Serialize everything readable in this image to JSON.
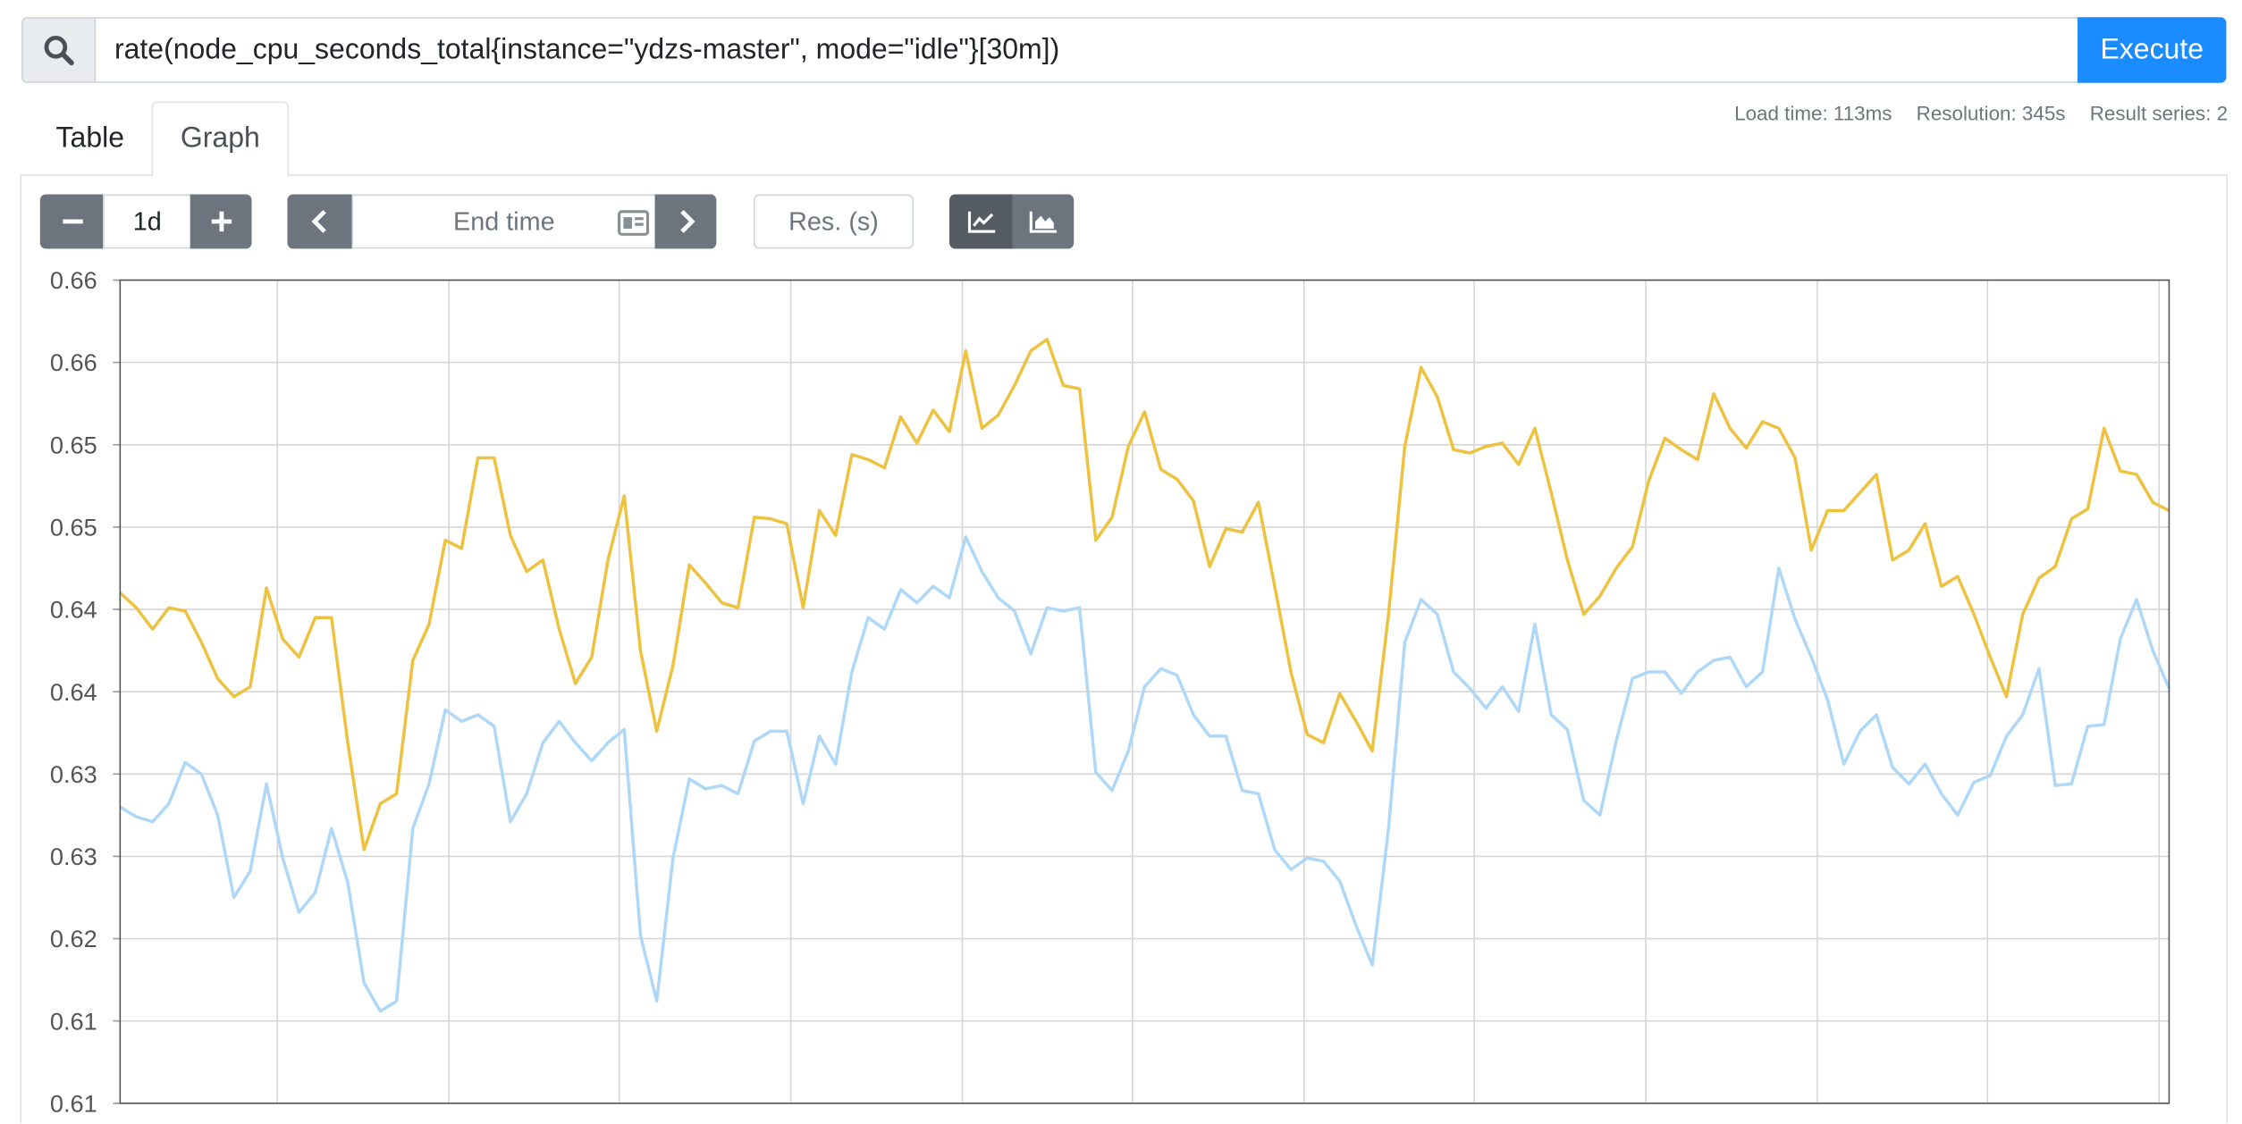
{
  "query": {
    "text": "rate(node_cpu_seconds_total{instance=\"ydzs-master\", mode=\"idle\"}[30m])",
    "button": "Execute"
  },
  "tabs": [
    "Table",
    "Graph"
  ],
  "stats": [
    "Load time: 113ms",
    "Resolution: 345s",
    "Result series: 2"
  ],
  "controls": {
    "range": "1d",
    "end_time": "End time",
    "resolution": "Res. (s)"
  },
  "chart_data": {
    "type": "line",
    "ylim": [
      0.61,
      0.66
    ],
    "yticks": [
      0.61,
      {
        "value": 0.615,
        "label": "0.61"
      },
      0.62,
      {
        "value": 0.625,
        "label": "0.63"
      },
      0.63,
      {
        "value": 0.635,
        "label": "0.64"
      },
      0.64,
      {
        "value": 0.645,
        "label": "0.65"
      },
      0.65,
      {
        "value": 0.655,
        "label": "0.66"
      },
      0.66
    ],
    "grid": true,
    "series": [
      {
        "color": "#edc240",
        "values": [
          0.641,
          0.6401,
          0.6388,
          0.6401,
          0.6399,
          0.638,
          0.6358,
          0.6347,
          0.6353,
          0.6413,
          0.6382,
          0.6371,
          0.6395,
          0.6395,
          0.6319,
          0.6254,
          0.6282,
          0.6288,
          0.6369,
          0.6391,
          0.6442,
          0.6437,
          0.6492,
          0.6492,
          0.6445,
          0.6423,
          0.643,
          0.6388,
          0.6355,
          0.6371,
          0.643,
          0.6469,
          0.6375,
          0.6326,
          0.6366,
          0.6427,
          0.6416,
          0.6404,
          0.6401,
          0.6456,
          0.6455,
          0.6452,
          0.6401,
          0.646,
          0.6445,
          0.6494,
          0.6491,
          0.6486,
          0.6517,
          0.6501,
          0.6521,
          0.6508,
          0.6557,
          0.651,
          0.6518,
          0.6536,
          0.6557,
          0.6564,
          0.6536,
          0.6534,
          0.6442,
          0.6456,
          0.6499,
          0.652,
          0.6485,
          0.6479,
          0.6466,
          0.6426,
          0.6449,
          0.6447,
          0.6465,
          0.6414,
          0.6362,
          0.6324,
          0.6319,
          0.6349,
          0.6332,
          0.6314,
          0.6397,
          0.6499,
          0.6547,
          0.6529,
          0.6497,
          0.6495,
          0.6499,
          0.6501,
          0.6488,
          0.651,
          0.6471,
          0.643,
          0.6397,
          0.6408,
          0.6425,
          0.6438,
          0.6478,
          0.6504,
          0.6497,
          0.6491,
          0.6531,
          0.651,
          0.6498,
          0.6514,
          0.651,
          0.6492,
          0.6436,
          0.646,
          0.646,
          0.6471,
          0.6482,
          0.643,
          0.6436,
          0.6452,
          0.6414,
          0.642,
          0.6397,
          0.6371,
          0.6347,
          0.6397,
          0.6419,
          0.6426,
          0.6455,
          0.6461,
          0.651,
          0.6484,
          0.6482,
          0.6465,
          0.646
        ]
      },
      {
        "color": "#afd8f8",
        "values": [
          0.628,
          0.6274,
          0.6271,
          0.6282,
          0.6307,
          0.63,
          0.6275,
          0.6225,
          0.6241,
          0.6294,
          0.6249,
          0.6216,
          0.6228,
          0.6267,
          0.6234,
          0.6173,
          0.6156,
          0.6162,
          0.6267,
          0.6294,
          0.6339,
          0.6332,
          0.6336,
          0.6329,
          0.6271,
          0.6288,
          0.6319,
          0.6332,
          0.6319,
          0.6308,
          0.6319,
          0.6327,
          0.6202,
          0.6162,
          0.6249,
          0.6297,
          0.6291,
          0.6293,
          0.6288,
          0.632,
          0.6326,
          0.6326,
          0.6282,
          0.6323,
          0.6306,
          0.6362,
          0.6395,
          0.6388,
          0.6412,
          0.6404,
          0.6414,
          0.6407,
          0.6444,
          0.6423,
          0.6407,
          0.6399,
          0.6373,
          0.6401,
          0.6399,
          0.6401,
          0.6301,
          0.629,
          0.6314,
          0.6353,
          0.6364,
          0.636,
          0.6336,
          0.6323,
          0.6323,
          0.629,
          0.6288,
          0.6254,
          0.6242,
          0.6249,
          0.6247,
          0.6235,
          0.6208,
          0.6184,
          0.6267,
          0.638,
          0.6406,
          0.6397,
          0.6362,
          0.6352,
          0.634,
          0.6353,
          0.6338,
          0.6391,
          0.6336,
          0.6327,
          0.6284,
          0.6275,
          0.632,
          0.6358,
          0.6362,
          0.6362,
          0.6349,
          0.6362,
          0.6369,
          0.6371,
          0.6353,
          0.6362,
          0.6425,
          0.6394,
          0.6371,
          0.6345,
          0.6306,
          0.6326,
          0.6336,
          0.6304,
          0.6294,
          0.6306,
          0.6288,
          0.6275,
          0.6295,
          0.6299,
          0.6323,
          0.6336,
          0.6364,
          0.6293,
          0.6294,
          0.6329,
          0.633,
          0.6382,
          0.6406,
          0.6375,
          0.6352
        ]
      }
    ]
  }
}
